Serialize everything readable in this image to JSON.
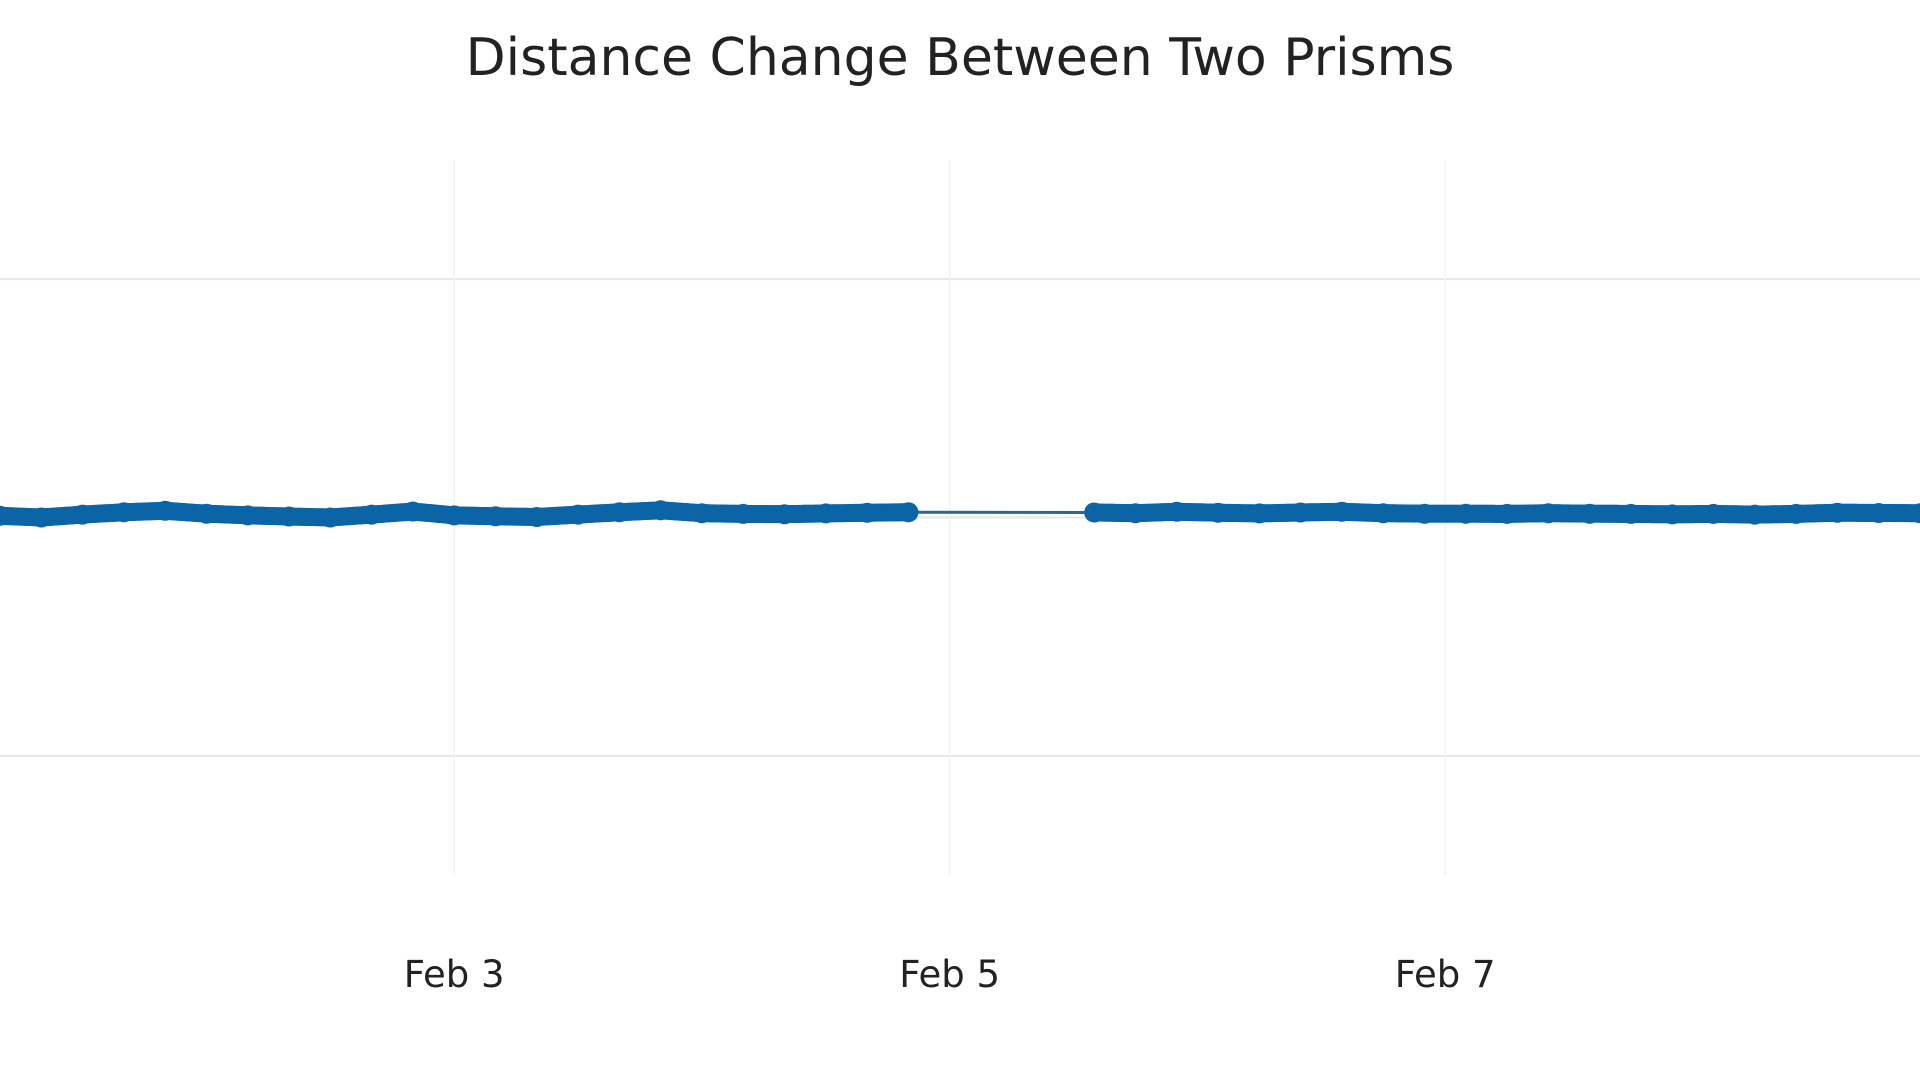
{
  "chart_data": {
    "type": "scatter",
    "mode": "lines+markers",
    "title": "Distance Change Between Two Prisms",
    "xlabel": "",
    "ylabel": "",
    "x_ticks": [
      {
        "value": "2024-02-03",
        "label": "Feb 3"
      },
      {
        "value": "2024-02-05",
        "label": "Feb 5"
      },
      {
        "value": "2024-02-07",
        "label": "Feb 7"
      }
    ],
    "xlim": [
      "2024-02-01T04:00:00",
      "2024-02-08T22:00:00"
    ],
    "ylim": [
      -1.5,
      1.5
    ],
    "y_gridlines": [
      -1,
      0,
      1
    ],
    "grid": true,
    "legend": "none",
    "colors": {
      "marker": "#0a64a6",
      "line": "#2f6787",
      "grid": "#e6e6e6",
      "background": "#ffffff"
    },
    "series": [
      {
        "x": [
          "2024-02-01T04:00",
          "2024-02-01T08:00",
          "2024-02-01T12:00",
          "2024-02-01T16:00",
          "2024-02-01T20:00",
          "2024-02-02T00:00",
          "2024-02-02T04:00",
          "2024-02-02T08:00",
          "2024-02-02T12:00",
          "2024-02-02T16:00",
          "2024-02-02T20:00",
          "2024-02-03T00:00",
          "2024-02-03T04:00",
          "2024-02-03T08:00",
          "2024-02-03T12:00",
          "2024-02-03T16:00",
          "2024-02-03T20:00",
          "2024-02-04T00:00",
          "2024-02-04T04:00",
          "2024-02-04T08:00",
          "2024-02-04T12:00",
          "2024-02-04T16:00",
          "2024-02-04T20:00",
          "2024-02-05T14:00",
          "2024-02-05T18:00",
          "2024-02-05T22:00",
          "2024-02-06T02:00",
          "2024-02-06T06:00",
          "2024-02-06T10:00",
          "2024-02-06T14:00",
          "2024-02-06T18:00",
          "2024-02-06T22:00",
          "2024-02-07T02:00",
          "2024-02-07T06:00",
          "2024-02-07T10:00",
          "2024-02-07T14:00",
          "2024-02-07T18:00",
          "2024-02-07T22:00",
          "2024-02-08T02:00",
          "2024-02-08T06:00",
          "2024-02-08T10:00",
          "2024-02-08T14:00",
          "2024-02-08T18:00",
          "2024-02-08T22:00"
        ],
        "y": [
          0.007,
          0.0,
          0.012,
          0.022,
          0.028,
          0.016,
          0.009,
          0.004,
          0.0,
          0.012,
          0.025,
          0.009,
          0.005,
          0.002,
          0.012,
          0.022,
          0.03,
          0.018,
          0.015,
          0.014,
          0.017,
          0.02,
          0.022,
          0.021,
          0.018,
          0.024,
          0.02,
          0.017,
          0.021,
          0.024,
          0.018,
          0.016,
          0.016,
          0.015,
          0.018,
          0.016,
          0.015,
          0.013,
          0.015,
          0.012,
          0.015,
          0.02,
          0.019,
          0.018
        ]
      }
    ]
  }
}
